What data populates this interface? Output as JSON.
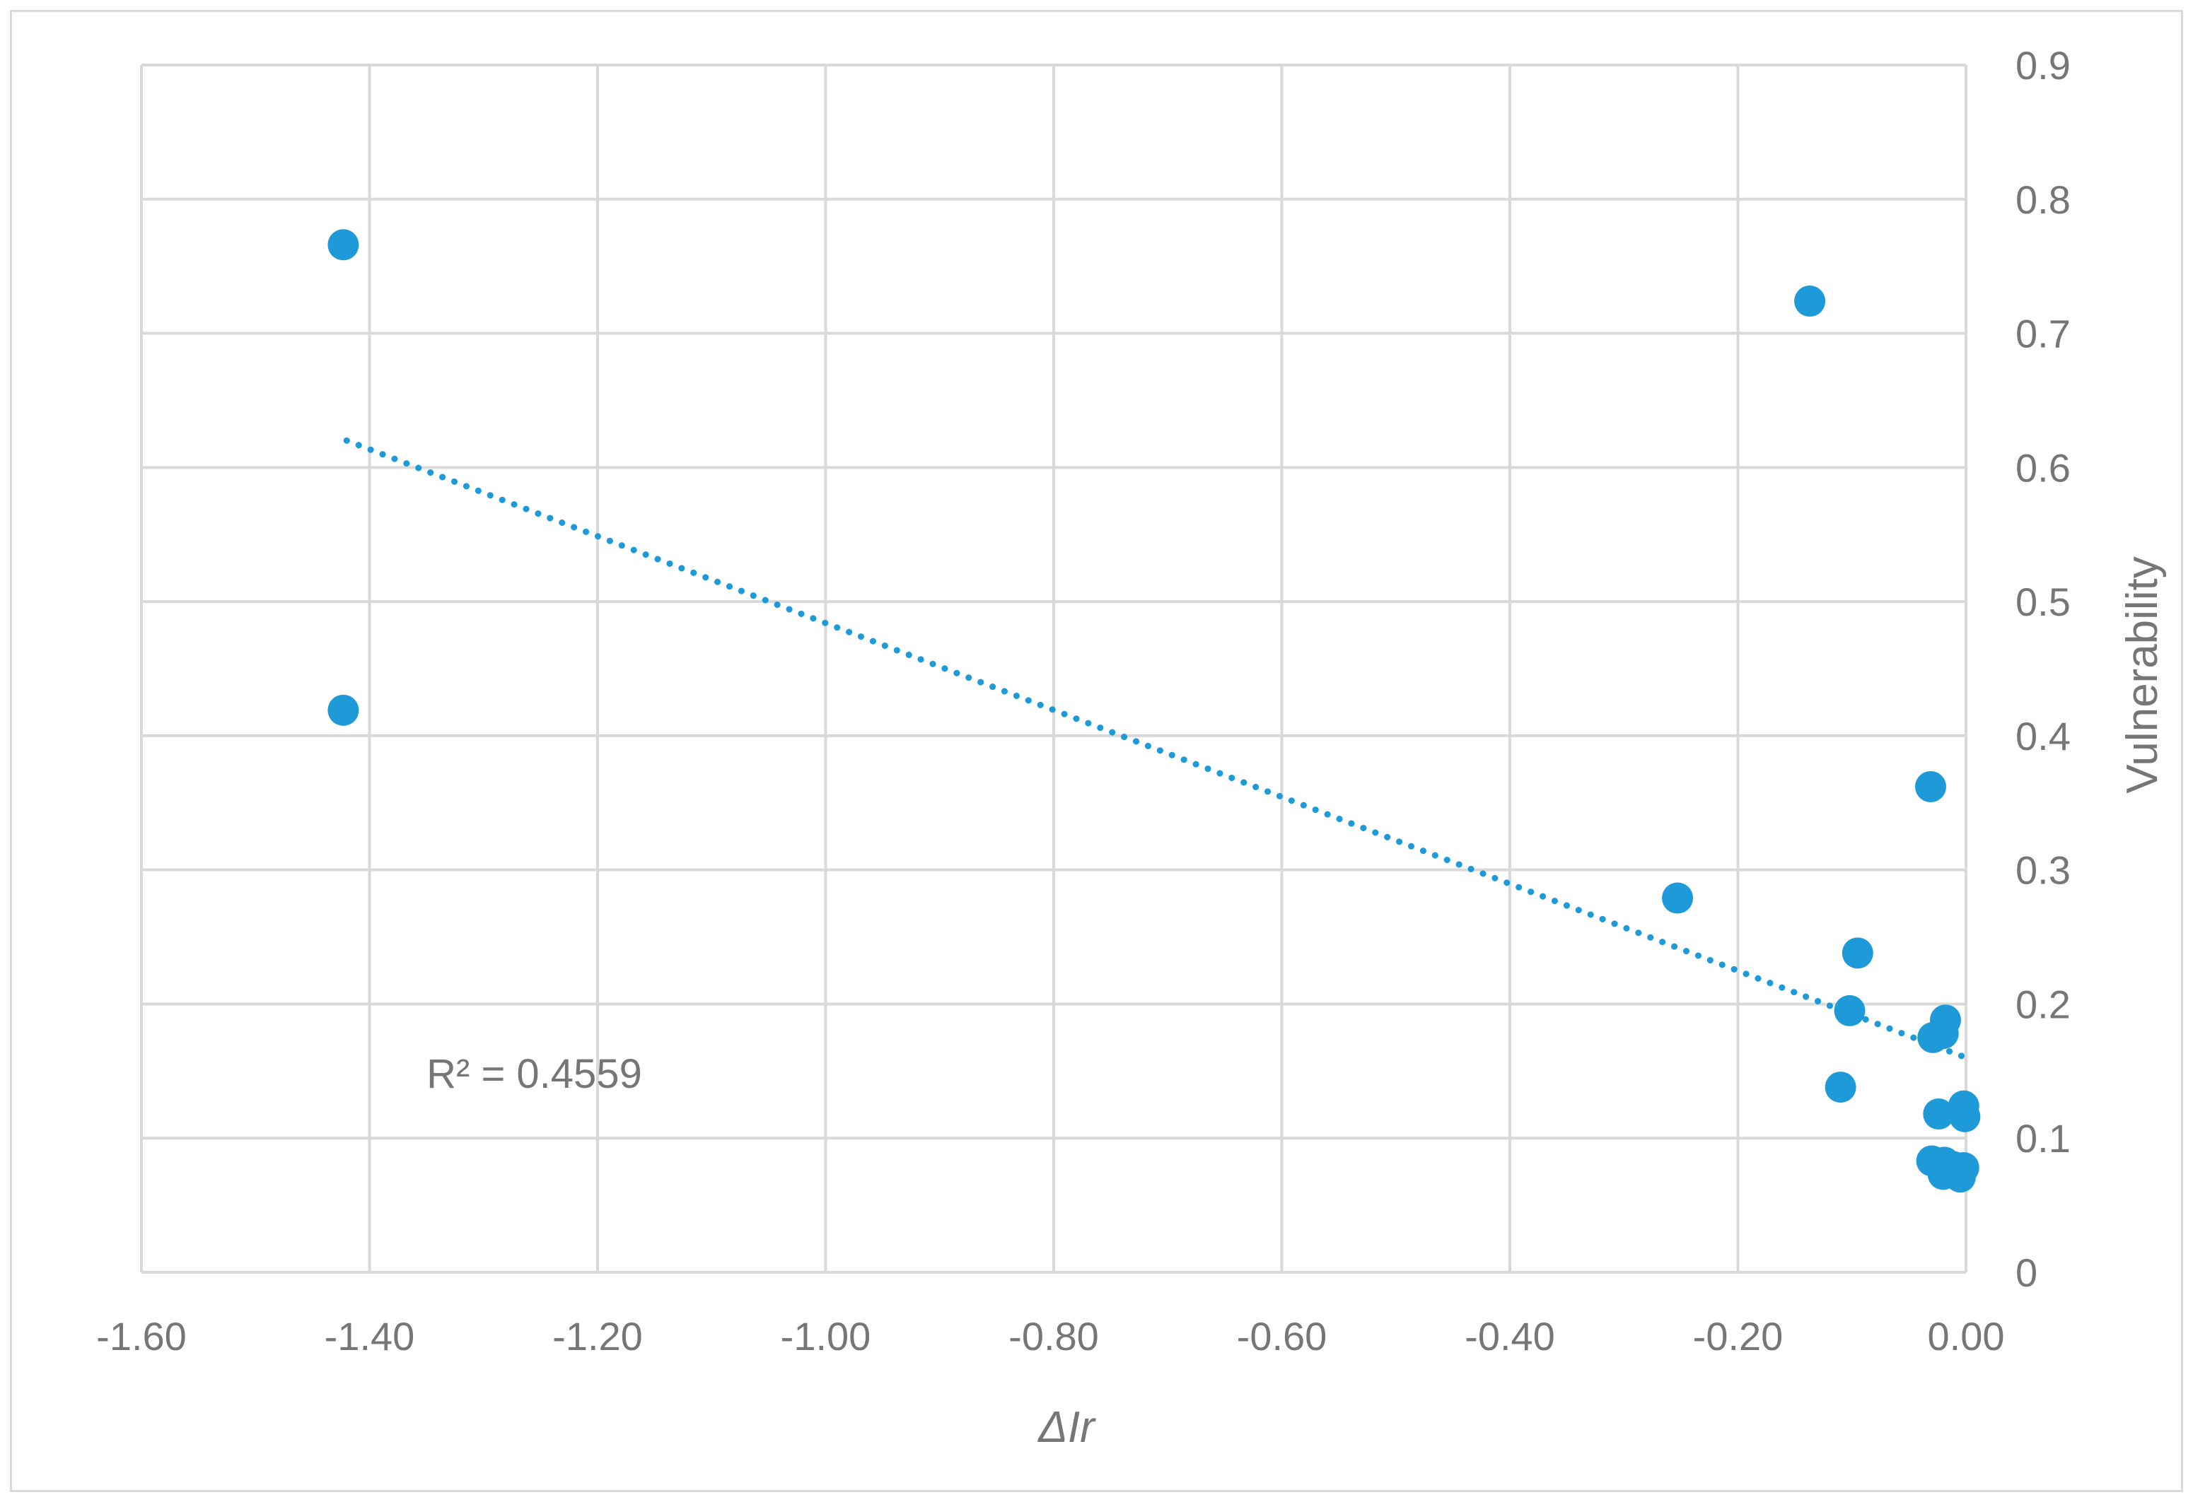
{
  "chart_data": {
    "type": "scatter",
    "xlabel": "ΔIr",
    "ylabel": "Vulnerability",
    "xlim": [
      -1.6,
      0.0
    ],
    "ylim": [
      0,
      0.9
    ],
    "x_ticks": [
      "-1.60",
      "-1.40",
      "-1.20",
      "-1.00",
      "-0.80",
      "-0.60",
      "-0.40",
      "-0.20",
      "0.00"
    ],
    "x_tick_values": [
      -1.6,
      -1.4,
      -1.2,
      -1.0,
      -0.8,
      -0.6,
      -0.4,
      -0.2,
      0.0
    ],
    "y_ticks": [
      "0",
      "0.1",
      "0.2",
      "0.3",
      "0.4",
      "0.5",
      "0.6",
      "0.7",
      "0.8",
      "0.9"
    ],
    "y_tick_values": [
      0,
      0.1,
      0.2,
      0.3,
      0.4,
      0.5,
      0.6,
      0.7,
      0.8,
      0.9
    ],
    "y_axis_side": "right",
    "grid": true,
    "legend": "none",
    "colors": {
      "points": "#1f9ad8",
      "trendline": "#1f9ad8",
      "grid": "#d9d9d9",
      "text": "#767676"
    },
    "points": [
      {
        "x": -1.423,
        "y": 0.766
      },
      {
        "x": -1.423,
        "y": 0.419
      },
      {
        "x": -0.137,
        "y": 0.724
      },
      {
        "x": -0.031,
        "y": 0.362
      },
      {
        "x": -0.253,
        "y": 0.279
      },
      {
        "x": -0.095,
        "y": 0.238
      },
      {
        "x": -0.102,
        "y": 0.195
      },
      {
        "x": -0.018,
        "y": 0.188
      },
      {
        "x": -0.02,
        "y": 0.178
      },
      {
        "x": -0.029,
        "y": 0.175
      },
      {
        "x": -0.11,
        "y": 0.138
      },
      {
        "x": -0.002,
        "y": 0.124
      },
      {
        "x": -0.024,
        "y": 0.118
      },
      {
        "x": -0.001,
        "y": 0.116
      },
      {
        "x": -0.03,
        "y": 0.083
      },
      {
        "x": -0.019,
        "y": 0.082
      },
      {
        "x": -0.012,
        "y": 0.079
      },
      {
        "x": -0.002,
        "y": 0.078
      },
      {
        "x": -0.02,
        "y": 0.073
      },
      {
        "x": -0.005,
        "y": 0.071
      }
    ],
    "trendline": {
      "type": "linear",
      "style": "dotted",
      "x": [
        -1.42,
        0.0
      ],
      "y": [
        0.62,
        0.16
      ]
    },
    "annotation": {
      "text": "R² = 0.4559",
      "x": -1.35,
      "y": 0.148
    }
  }
}
